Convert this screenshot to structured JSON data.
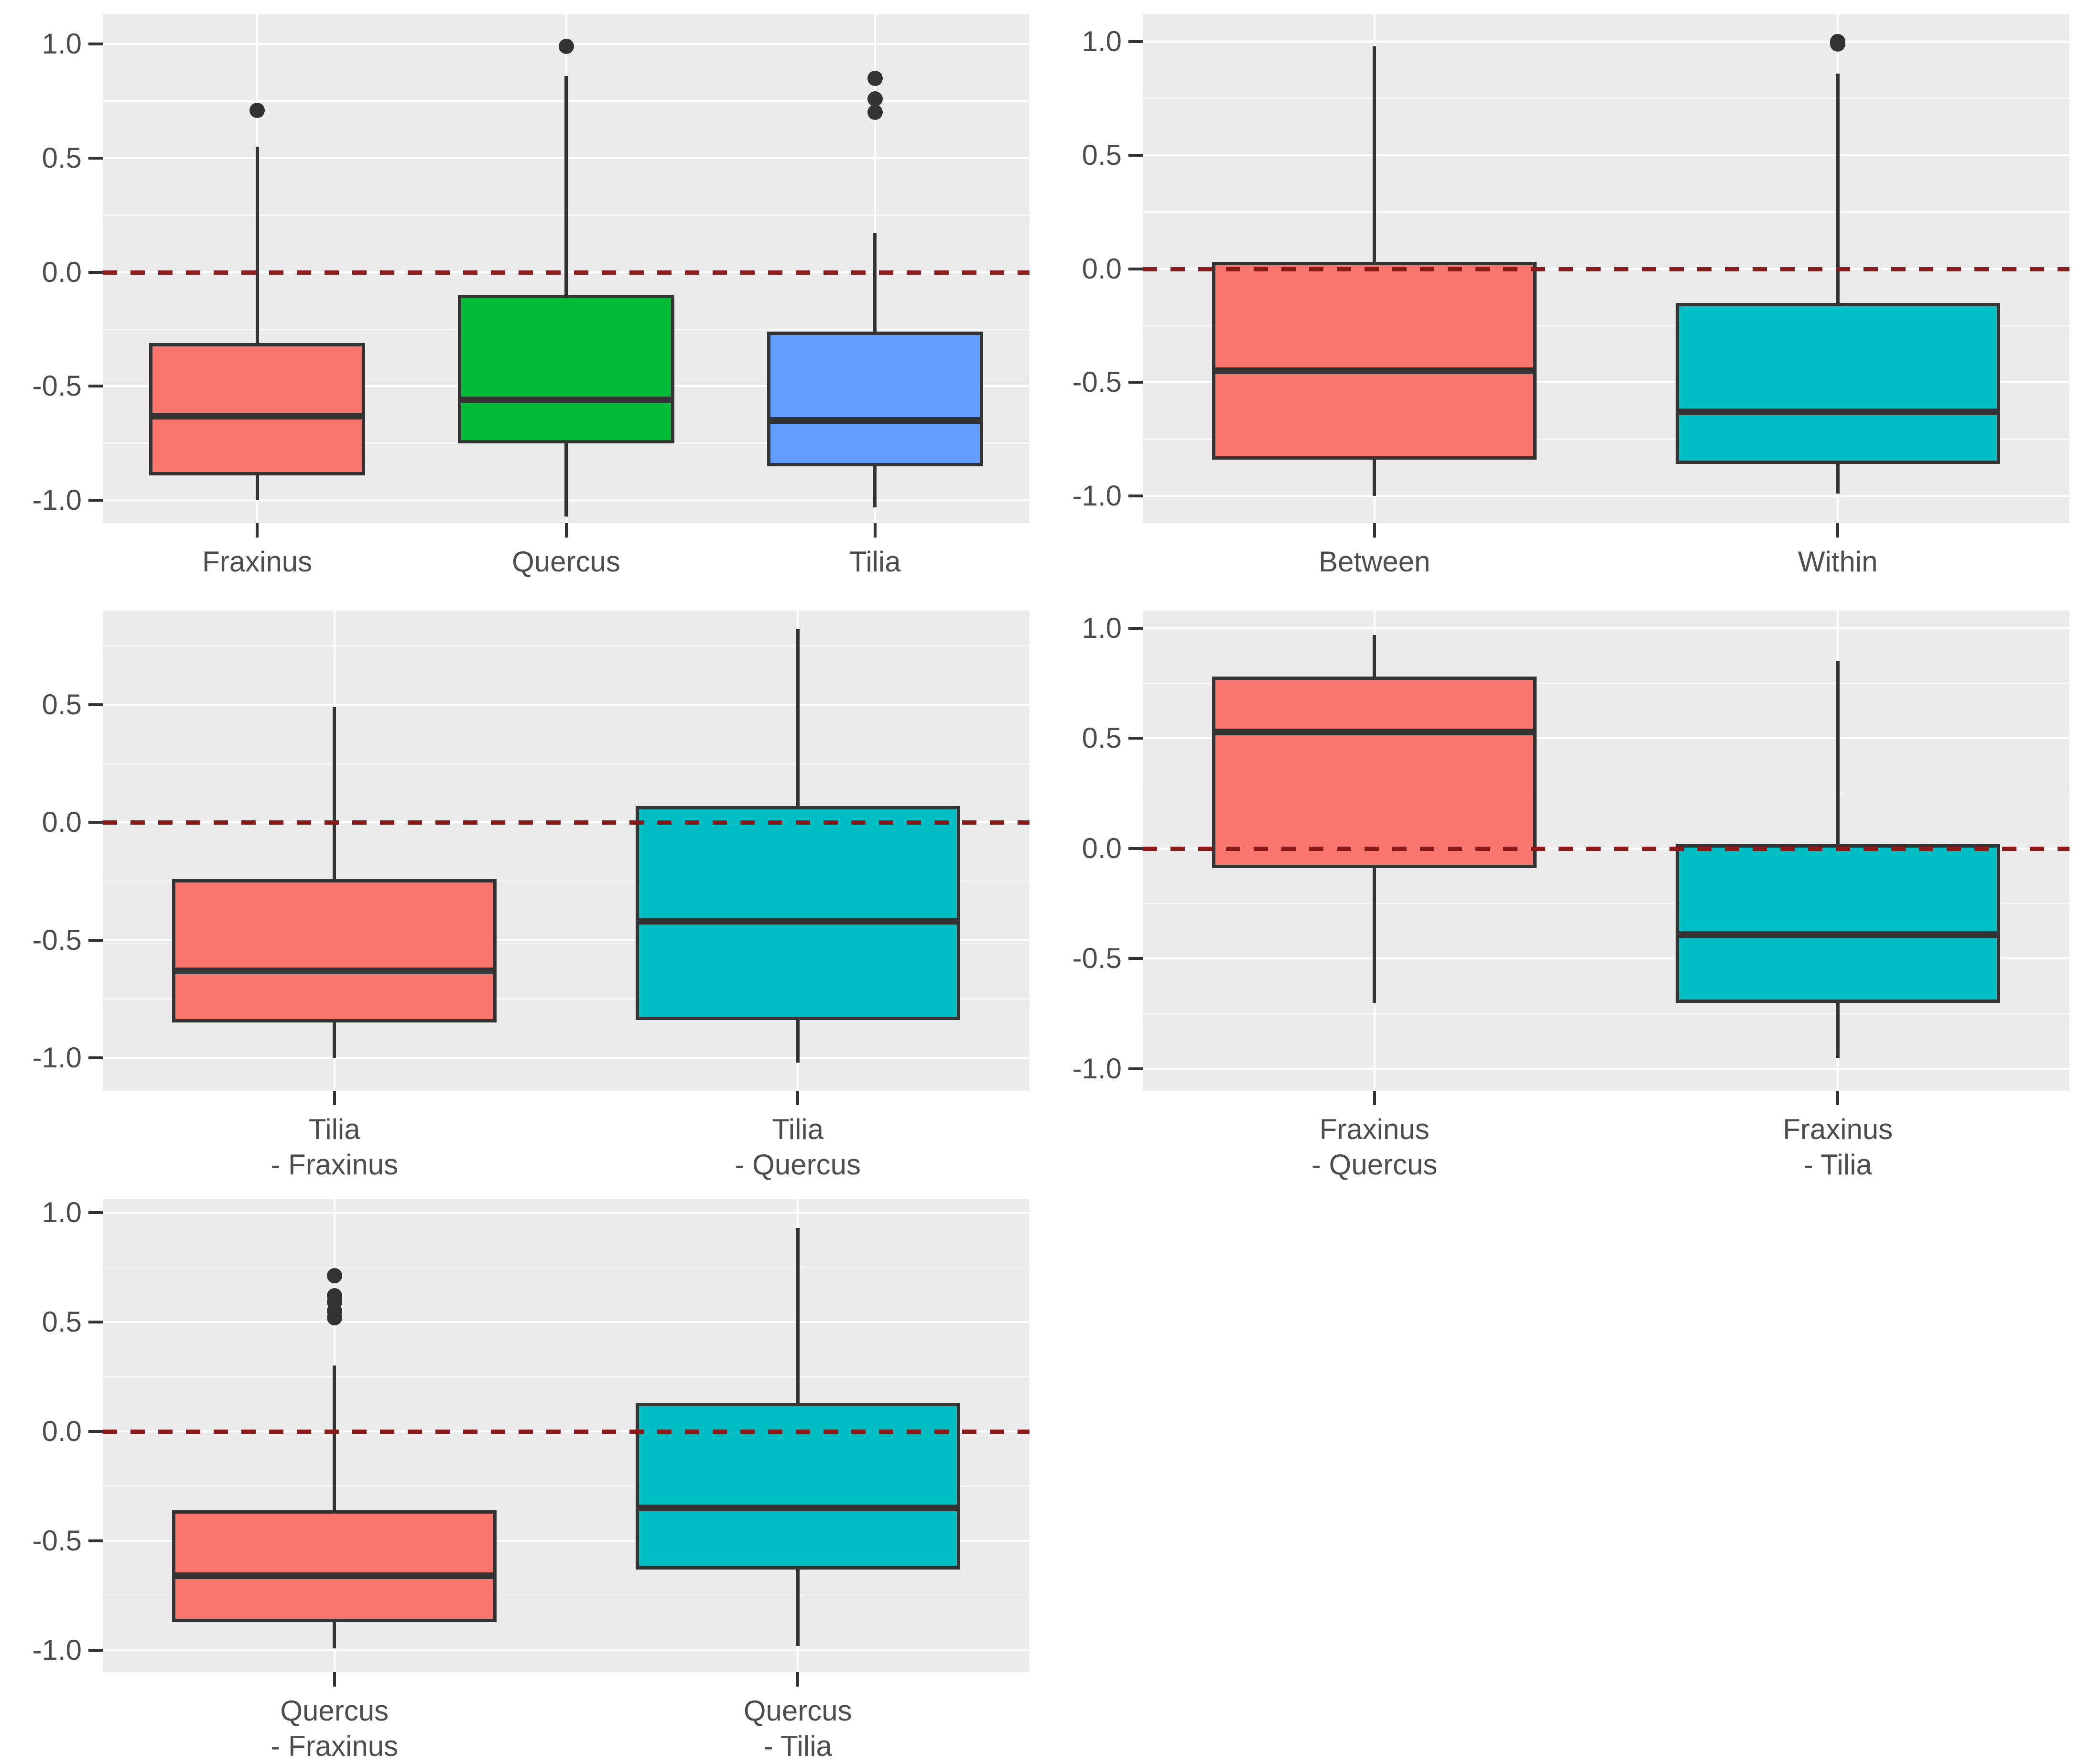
{
  "theme": {
    "panel_bg": "#EBEBEB",
    "grid_color": "#FFFFFF",
    "box_line_color": "#333333",
    "axis_text_color": "#4D4D4D",
    "ref_line_color": "#8B1A1A",
    "figure_bg": "#FFFFFF"
  },
  "chart_data": [
    {
      "type": "box",
      "panel": "top-left",
      "row": 0,
      "col": 0,
      "ylim": [
        -1.1,
        1.13
      ],
      "yticks": [
        {
          "v": 1.0,
          "label": "1.0"
        },
        {
          "v": 0.5,
          "label": "0.5"
        },
        {
          "v": 0.0,
          "label": "0.0"
        },
        {
          "v": -0.5,
          "label": "-0.5"
        },
        {
          "v": -1.0,
          "label": "-1.0"
        }
      ],
      "minor_ticks": [
        0.75,
        0.25,
        -0.25,
        -0.75
      ],
      "ref_line": {
        "y": 0.0,
        "linetype": "dashed",
        "color": "#8B1A1A"
      },
      "boxes": [
        {
          "category": "Fraxinus",
          "label_lines": [
            "Fraxinus"
          ],
          "fill": "#F8766D",
          "whisker_low": -1.0,
          "q1": -0.89,
          "median": -0.63,
          "q3": -0.31,
          "whisker_high": 0.55,
          "outliers": [
            0.71
          ]
        },
        {
          "category": "Quercus",
          "label_lines": [
            "Quercus"
          ],
          "fill": "#00BA38",
          "whisker_low": -1.07,
          "q1": -0.75,
          "median": -0.56,
          "q3": -0.1,
          "whisker_high": 0.86,
          "outliers": [
            0.99
          ]
        },
        {
          "category": "Tilia",
          "label_lines": [
            "Tilia"
          ],
          "fill": "#619CFF",
          "whisker_low": -1.03,
          "q1": -0.85,
          "median": -0.65,
          "q3": -0.26,
          "whisker_high": 0.17,
          "outliers": [
            0.7,
            0.76,
            0.85
          ]
        }
      ]
    },
    {
      "type": "box",
      "panel": "top-right",
      "row": 0,
      "col": 1,
      "ylim": [
        -1.12,
        1.12
      ],
      "yticks": [
        {
          "v": 1.0,
          "label": "1.0"
        },
        {
          "v": 0.5,
          "label": "0.5"
        },
        {
          "v": 0.0,
          "label": "0.0"
        },
        {
          "v": -0.5,
          "label": "-0.5"
        },
        {
          "v": -1.0,
          "label": "-1.0"
        }
      ],
      "minor_ticks": [
        0.75,
        0.25,
        -0.25,
        -0.75
      ],
      "ref_line": {
        "y": 0.0,
        "linetype": "dashed",
        "color": "#8B1A1A"
      },
      "boxes": [
        {
          "category": "Between",
          "label_lines": [
            "Between"
          ],
          "fill": "#F8766D",
          "whisker_low": -1.0,
          "q1": -0.84,
          "median": -0.45,
          "q3": 0.03,
          "whisker_high": 0.98,
          "outliers": []
        },
        {
          "category": "Within",
          "label_lines": [
            "Within"
          ],
          "fill": "#00BFC4",
          "whisker_low": -0.99,
          "q1": -0.86,
          "median": -0.63,
          "q3": -0.15,
          "whisker_high": 0.86,
          "outliers": [
            0.99,
            1.0
          ]
        }
      ]
    },
    {
      "type": "box",
      "panel": "middle-left",
      "row": 1,
      "col": 0,
      "ylim": [
        -1.14,
        0.9
      ],
      "yticks": [
        {
          "v": 0.5,
          "label": "0.5"
        },
        {
          "v": 0.0,
          "label": "0.0"
        },
        {
          "v": -0.5,
          "label": "-0.5"
        },
        {
          "v": -1.0,
          "label": "-1.0"
        }
      ],
      "minor_ticks": [
        0.75,
        0.25,
        -0.25,
        -0.75
      ],
      "ref_line": {
        "y": 0.0,
        "linetype": "dashed",
        "color": "#8B1A1A"
      },
      "boxes": [
        {
          "category": "Tilia - Fraxinus",
          "label_lines": [
            "Tilia",
            "- Fraxinus"
          ],
          "fill": "#F8766D",
          "whisker_low": -1.0,
          "q1": -0.85,
          "median": -0.63,
          "q3": -0.24,
          "whisker_high": 0.49,
          "outliers": []
        },
        {
          "category": "Tilia - Quercus",
          "label_lines": [
            "Tilia",
            "- Quercus"
          ],
          "fill": "#00BFC4",
          "whisker_low": -1.02,
          "q1": -0.84,
          "median": -0.42,
          "q3": 0.07,
          "whisker_high": 0.82,
          "outliers": []
        }
      ]
    },
    {
      "type": "box",
      "panel": "middle-right",
      "row": 1,
      "col": 1,
      "ylim": [
        -1.1,
        1.08
      ],
      "yticks": [
        {
          "v": 1.0,
          "label": "1.0"
        },
        {
          "v": 0.5,
          "label": "0.5"
        },
        {
          "v": 0.0,
          "label": "0.0"
        },
        {
          "v": -0.5,
          "label": "-0.5"
        },
        {
          "v": -1.0,
          "label": "-1.0"
        }
      ],
      "minor_ticks": [
        0.75,
        0.25,
        -0.25,
        -0.75
      ],
      "ref_line": {
        "y": 0.0,
        "linetype": "dashed",
        "color": "#8B1A1A"
      },
      "boxes": [
        {
          "category": "Fraxinus - Quercus",
          "label_lines": [
            "Fraxinus",
            "- Quercus"
          ],
          "fill": "#F8766D",
          "whisker_low": -0.7,
          "q1": -0.09,
          "median": 0.53,
          "q3": 0.78,
          "whisker_high": 0.97,
          "outliers": []
        },
        {
          "category": "Fraxinus - Tilia",
          "label_lines": [
            "Fraxinus",
            "- Tilia"
          ],
          "fill": "#00BFC4",
          "whisker_low": -0.95,
          "q1": -0.7,
          "median": -0.39,
          "q3": 0.02,
          "whisker_high": 0.85,
          "outliers": []
        }
      ]
    },
    {
      "type": "box",
      "panel": "bottom-left",
      "row": 2,
      "col": 0,
      "ylim": [
        -1.1,
        1.06
      ],
      "yticks": [
        {
          "v": 1.0,
          "label": "1.0"
        },
        {
          "v": 0.5,
          "label": "0.5"
        },
        {
          "v": 0.0,
          "label": "0.0"
        },
        {
          "v": -0.5,
          "label": "-0.5"
        },
        {
          "v": -1.0,
          "label": "-1.0"
        }
      ],
      "minor_ticks": [
        0.75,
        0.25,
        -0.25,
        -0.75
      ],
      "ref_line": {
        "y": 0.0,
        "linetype": "dashed",
        "color": "#8B1A1A"
      },
      "boxes": [
        {
          "category": "Quercus - Fraxinus",
          "label_lines": [
            "Quercus",
            "- Fraxinus"
          ],
          "fill": "#F8766D",
          "whisker_low": -0.99,
          "q1": -0.87,
          "median": -0.66,
          "q3": -0.36,
          "whisker_high": 0.3,
          "outliers": [
            0.52,
            0.55,
            0.59,
            0.62,
            0.71
          ]
        },
        {
          "category": "Quercus - Tilia",
          "label_lines": [
            "Quercus",
            "- Tilia"
          ],
          "fill": "#00BFC4",
          "whisker_low": -0.98,
          "q1": -0.63,
          "median": -0.35,
          "q3": 0.13,
          "whisker_high": 0.93,
          "outliers": []
        }
      ]
    }
  ]
}
